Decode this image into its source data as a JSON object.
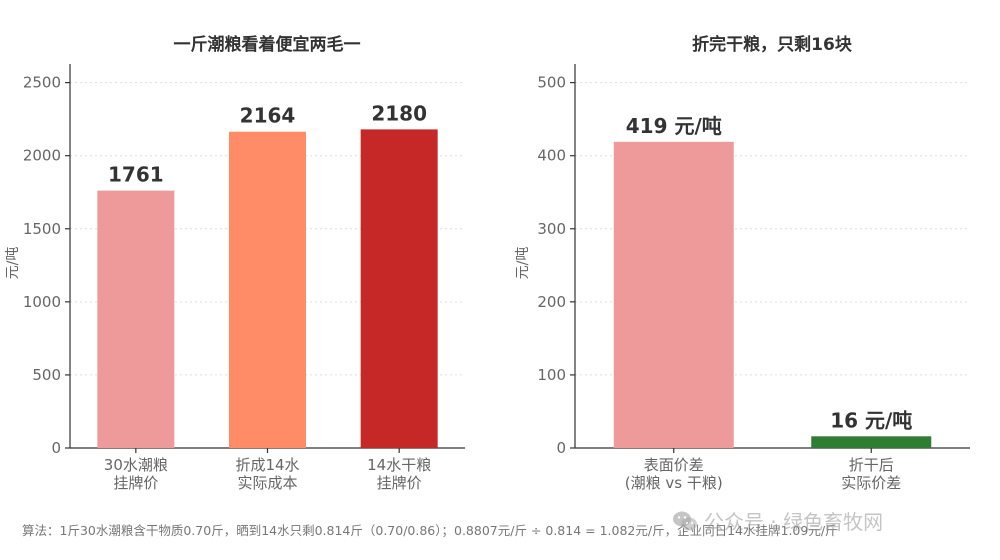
{
  "chart_data": [
    {
      "type": "bar",
      "title": "一斤潮粮看着便宜两毛一",
      "ylabel": "元/吨",
      "ylim": [
        0,
        2600
      ],
      "yticks": [
        0,
        500,
        1000,
        1500,
        2000,
        2500
      ],
      "grid": true,
      "categories": [
        [
          "30水潮粮",
          "挂牌价"
        ],
        [
          "折成14水",
          "实际成本"
        ],
        [
          "14水干粮",
          "挂牌价"
        ]
      ],
      "values": [
        1761,
        2164,
        2180
      ],
      "data_labels": [
        "1761",
        "2164",
        "2180"
      ],
      "colors": [
        "#ee9a9a",
        "#ff8c66",
        "#c62828"
      ]
    },
    {
      "type": "bar",
      "title": "折完干粮，只剩16块",
      "ylabel": "元/吨",
      "ylim": [
        0,
        520
      ],
      "yticks": [
        0,
        100,
        200,
        300,
        400,
        500
      ],
      "grid": true,
      "categories": [
        [
          "表面价差",
          "(潮粮 vs 干粮)"
        ],
        [
          "折干后",
          "实际价差"
        ]
      ],
      "values": [
        419,
        16
      ],
      "data_labels": [
        "419 元/吨",
        "16 元/吨"
      ],
      "colors": [
        "#ee9a9a",
        "#2e7d32"
      ]
    }
  ],
  "footnote": "算法：1斤30水潮粮含干物质0.70斤，晒到14水只剩0.814斤（0.70/0.86）；0.8807元/斤 ÷ 0.814 = 1.082元/斤，企业同日14水挂牌1.09元/斤",
  "watermark": {
    "text": "公众号 · 绿色畜牧网",
    "icon": "wechat-icon"
  }
}
